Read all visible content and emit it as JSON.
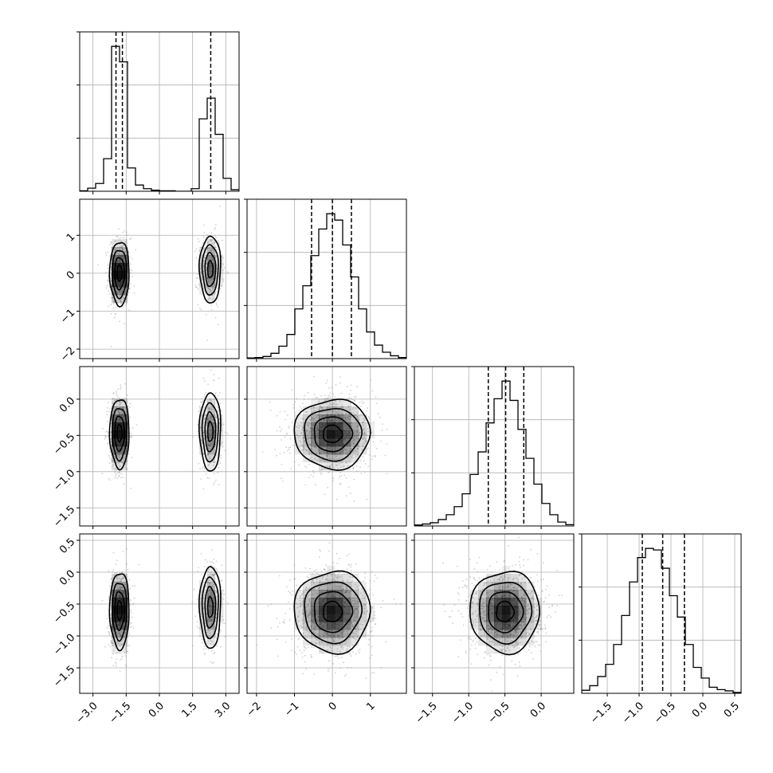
{
  "chart_data": {
    "type": "corner",
    "title": "",
    "grid": true,
    "params": [
      {
        "index": 0,
        "xlim": [
          -3.6,
          3.6
        ],
        "ticks": [
          -3.0,
          -1.5,
          0.0,
          1.5,
          3.0
        ],
        "tick_labels": [
          "−3.0",
          "−1.5",
          "0.0",
          "1.5",
          "3.0"
        ]
      },
      {
        "index": 1,
        "xlim": [
          -2.25,
          1.95
        ],
        "ticks": [
          -2,
          -1,
          0,
          1
        ],
        "tick_labels": [
          "−2",
          "−1",
          "0",
          "1"
        ]
      },
      {
        "index": 2,
        "xlim": [
          -1.75,
          0.45
        ],
        "ticks": [
          -1.5,
          -1.0,
          -0.5,
          0.0
        ],
        "tick_labels": [
          "−1.5",
          "−1.0",
          "−0.5",
          "0.0"
        ]
      },
      {
        "index": 3,
        "xlim": [
          -1.9,
          0.6
        ],
        "ticks": [
          -1.5,
          -1.0,
          -0.5,
          0.0,
          0.5
        ],
        "tick_labels": [
          "−1.5",
          "−1.0",
          "−0.5",
          "0.0",
          "0.5"
        ]
      }
    ],
    "row_tick_labels": [
      {
        "index": 1,
        "ticks": [
          1,
          0,
          -1,
          -2
        ],
        "tick_labels": [
          "1",
          "0",
          "−1",
          "−2"
        ]
      },
      {
        "index": 2,
        "ticks": [
          0.0,
          -0.5,
          -1.0,
          -1.5
        ],
        "tick_labels": [
          "0.0",
          "−0.5",
          "−1.0",
          "−1.5"
        ]
      },
      {
        "index": 3,
        "ticks": [
          0.5,
          0.0,
          -0.5,
          -1.0,
          -1.5
        ],
        "tick_labels": [
          "0.5",
          "0.0",
          "−0.5",
          "−1.0",
          "−1.5"
        ]
      }
    ],
    "histograms": [
      {
        "param": 0,
        "bin_edges": [
          -3.6,
          -3.24,
          -2.88,
          -2.52,
          -2.16,
          -1.8,
          -1.44,
          -1.08,
          -0.72,
          -0.36,
          0.0,
          0.36,
          0.72,
          1.08,
          1.44,
          1.8,
          2.16,
          2.52,
          2.88,
          3.24,
          3.6
        ],
        "counts": [
          1,
          6,
          15,
          63,
          280,
          250,
          45,
          12,
          5,
          2,
          1,
          1,
          0,
          0,
          5,
          140,
          180,
          110,
          25,
          3
        ],
        "quantiles": [
          -1.96,
          -1.67,
          2.32
        ]
      },
      {
        "param": 1,
        "bin_edges": [
          -2.25,
          -2.04,
          -1.83,
          -1.62,
          -1.41,
          -1.2,
          -0.99,
          -0.78,
          -0.57,
          -0.36,
          -0.15,
          0.06,
          0.27,
          0.48,
          0.69,
          0.9,
          1.11,
          1.32,
          1.53,
          1.74,
          1.95
        ],
        "counts": [
          2,
          3,
          6,
          15,
          35,
          68,
          140,
          205,
          290,
          365,
          408,
          390,
          320,
          230,
          140,
          75,
          38,
          18,
          8,
          3
        ],
        "quantiles": [
          -0.55,
          0.0,
          0.5
        ]
      },
      {
        "param": 2,
        "bin_edges": [
          -1.75,
          -1.64,
          -1.53,
          -1.42,
          -1.31,
          -1.2,
          -1.09,
          -0.98,
          -0.87,
          -0.76,
          -0.65,
          -0.54,
          -0.43,
          -0.32,
          -0.21,
          -0.1,
          0.01,
          0.12,
          0.23,
          0.34,
          0.45
        ],
        "counts": [
          3,
          6,
          10,
          20,
          35,
          60,
          100,
          160,
          230,
          320,
          395,
          450,
          390,
          300,
          210,
          130,
          70,
          35,
          12,
          4
        ],
        "quantiles": [
          -0.73,
          -0.49,
          -0.24
        ]
      },
      {
        "param": 3,
        "bin_edges": [
          -1.9,
          -1.775,
          -1.65,
          -1.525,
          -1.4,
          -1.275,
          -1.15,
          -1.025,
          -0.9,
          -0.775,
          -0.65,
          -0.525,
          -0.4,
          -0.275,
          -0.15,
          -0.025,
          0.1,
          0.225,
          0.35,
          0.475,
          0.6
        ],
        "counts": [
          10,
          25,
          55,
          95,
          160,
          255,
          365,
          445,
          475,
          470,
          410,
          320,
          250,
          160,
          85,
          50,
          20,
          12,
          8,
          3
        ],
        "quantiles": [
          -0.95,
          -0.63,
          -0.29
        ]
      }
    ],
    "joint": [
      {
        "col": 0,
        "row": 1,
        "clusters": [
          {
            "cx": -1.8,
            "cy": 0.0,
            "sx": 0.22,
            "sy": 0.42,
            "weight": 0.64
          },
          {
            "cx": 2.3,
            "cy": 0.1,
            "sx": 0.24,
            "sy": 0.44,
            "weight": 0.36
          }
        ]
      },
      {
        "col": 0,
        "row": 2,
        "clusters": [
          {
            "cx": -1.8,
            "cy": -0.47,
            "sx": 0.22,
            "sy": 0.24,
            "weight": 0.64
          },
          {
            "cx": 2.3,
            "cy": -0.45,
            "sx": 0.24,
            "sy": 0.27,
            "weight": 0.36
          }
        ]
      },
      {
        "col": 0,
        "row": 3,
        "clusters": [
          {
            "cx": -1.8,
            "cy": -0.6,
            "sx": 0.22,
            "sy": 0.3,
            "weight": 0.64
          },
          {
            "cx": 2.3,
            "cy": -0.55,
            "sx": 0.24,
            "sy": 0.32,
            "weight": 0.36
          }
        ]
      },
      {
        "col": 1,
        "row": 2,
        "clusters": [
          {
            "cx": 0.0,
            "cy": -0.48,
            "sx": 0.5,
            "sy": 0.24,
            "weight": 1.0
          }
        ]
      },
      {
        "col": 1,
        "row": 3,
        "clusters": [
          {
            "cx": 0.0,
            "cy": -0.62,
            "sx": 0.5,
            "sy": 0.32,
            "weight": 1.0
          }
        ]
      },
      {
        "col": 2,
        "row": 3,
        "clusters": [
          {
            "cx": -0.5,
            "cy": -0.62,
            "sx": 0.24,
            "sy": 0.32,
            "weight": 1.0
          }
        ]
      }
    ],
    "contour_levels_sigma": [
      0.5,
      1.0,
      1.5,
      2.0
    ],
    "colors": {
      "line": "#000000",
      "grid": "#b0b0b0",
      "points": "#9a9a9a",
      "density": "#000000"
    }
  }
}
